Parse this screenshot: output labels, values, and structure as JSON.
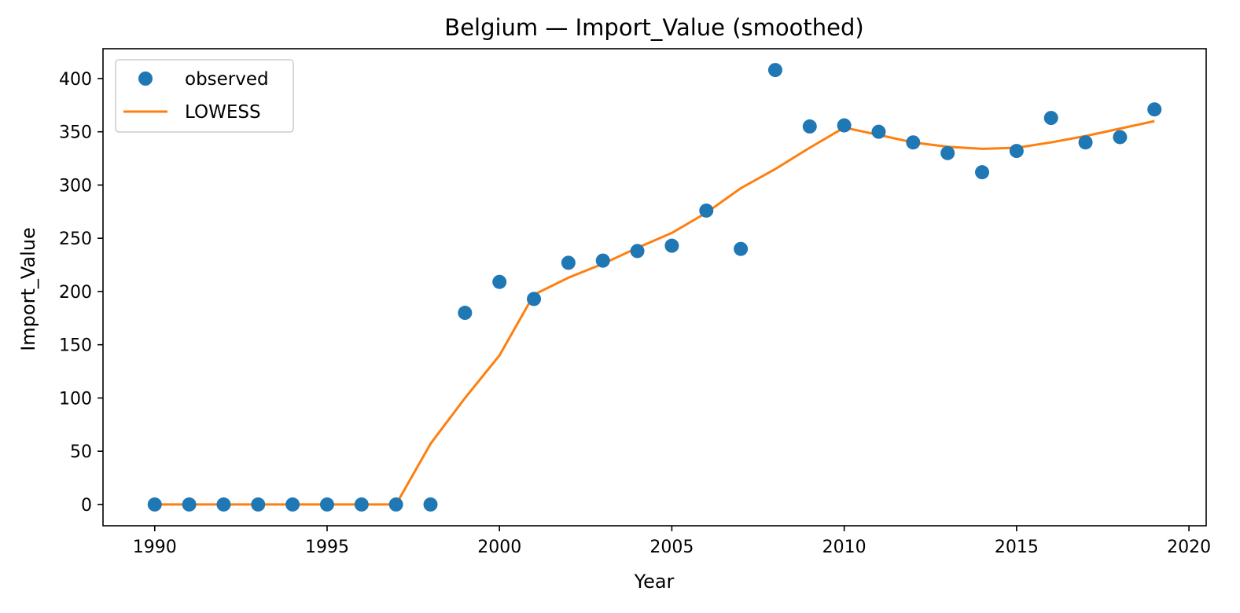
{
  "chart_data": {
    "type": "scatter",
    "title": "Belgium — Import_Value (smoothed)",
    "xlabel": "Year",
    "ylabel": "Import_Value",
    "xlim": [
      1988.5,
      2020.5
    ],
    "ylim": [
      -20,
      428
    ],
    "xticks": [
      1990,
      1995,
      2000,
      2005,
      2010,
      2015,
      2020
    ],
    "yticks": [
      0,
      50,
      100,
      150,
      200,
      250,
      300,
      350,
      400
    ],
    "grid": false,
    "legend_position": "upper-left",
    "colors": {
      "observed": "#1f77b4",
      "lowess": "#ff7f0e"
    },
    "series": [
      {
        "name": "observed",
        "style": "markers",
        "x": [
          1990,
          1991,
          1992,
          1993,
          1994,
          1995,
          1996,
          1997,
          1998,
          1999,
          2000,
          2001,
          2002,
          2003,
          2004,
          2005,
          2006,
          2007,
          2008,
          2009,
          2010,
          2011,
          2012,
          2013,
          2014,
          2015,
          2016,
          2017,
          2018,
          2019
        ],
        "y": [
          0,
          0,
          0,
          0,
          0,
          0,
          0,
          0,
          0,
          180,
          209,
          193,
          227,
          229,
          238,
          243,
          276,
          240,
          408,
          355,
          356,
          350,
          340,
          330,
          312,
          332,
          363,
          340,
          345,
          371
        ]
      },
      {
        "name": "LOWESS",
        "style": "line",
        "x": [
          1990,
          1991,
          1992,
          1993,
          1994,
          1995,
          1996,
          1997,
          1998,
          1999,
          2000,
          2001,
          2002,
          2003,
          2004,
          2005,
          2006,
          2007,
          2008,
          2009,
          2010,
          2011,
          2012,
          2013,
          2014,
          2015,
          2016,
          2017,
          2018,
          2019
        ],
        "y": [
          0,
          0,
          0,
          0,
          0,
          0,
          0,
          0,
          57,
          100,
          140,
          197,
          213,
          226,
          241,
          255,
          274,
          297,
          315,
          335,
          354,
          347,
          340,
          336,
          334,
          335,
          340,
          346,
          353,
          360
        ]
      }
    ]
  }
}
